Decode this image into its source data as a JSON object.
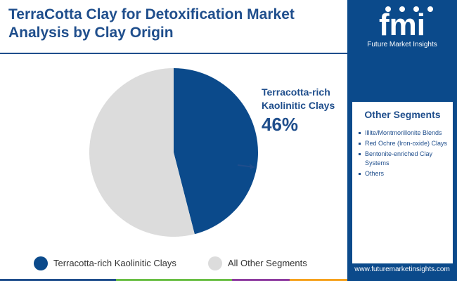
{
  "title": "TerraCotta Clay for Detoxification Market Analysis by Clay Origin",
  "brand": {
    "logo_text": "fmi",
    "name": "Future Market Insights",
    "website": "www.futuremarketinsights.com"
  },
  "sidebar": {
    "heading": "Other Segments",
    "items": [
      "Illite/Montmorillonite Blends",
      "Red Ochre (Iron-oxide) Clays",
      "Bentonite-enriched Clay Systems",
      "Others"
    ]
  },
  "chart_data": {
    "type": "pie",
    "slices": [
      {
        "label": "Terracotta-rich Kaolinitic Clays",
        "value": 46,
        "display": "46%",
        "color": "#0b4a8b"
      },
      {
        "label": "All Other Segments",
        "value": 54,
        "color": "#dcdcdc"
      }
    ],
    "annotation": {
      "label_line1": "Terracotta-rich",
      "label_line2": "Kaolinitic Clays",
      "value": "46%"
    },
    "legend": [
      "Terracotta-rich Kaolinitic Clays",
      "All Other Segments"
    ],
    "legend_position": "bottom"
  },
  "colors": {
    "primary": "#0b4a8b",
    "title": "#1f4e8c",
    "other": "#dcdcdc",
    "accent_bar": [
      "#1f4e8c",
      "#6abf45",
      "#8e3ba0",
      "#f6a21e"
    ]
  }
}
